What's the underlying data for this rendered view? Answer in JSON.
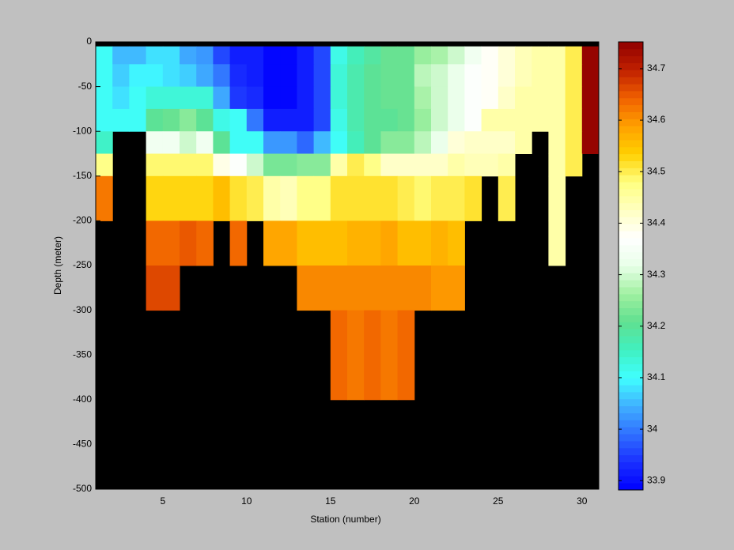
{
  "chart_data": {
    "type": "heatmap",
    "xlabel": "Station (number)",
    "ylabel": "Depth (meter)",
    "xlim": [
      1,
      31
    ],
    "xticks": [
      5,
      10,
      15,
      20,
      25,
      30
    ],
    "ylim": [
      -500,
      0
    ],
    "yticks": [
      -500,
      -450,
      -400,
      -350,
      -300,
      -250,
      -200,
      -150,
      -100,
      -50,
      0
    ],
    "x_edges": [
      1,
      2,
      3,
      4,
      5,
      6,
      7,
      8,
      9,
      10,
      11,
      12,
      13,
      14,
      15,
      16,
      17,
      18,
      19,
      20,
      21,
      22,
      23,
      24,
      25,
      26,
      27,
      28,
      29,
      30,
      31
    ],
    "y_edges": [
      -5,
      -25,
      -50,
      -75,
      -100,
      -125,
      -150,
      -200,
      -250,
      -300,
      -400,
      -500
    ],
    "z": [
      [
        34.1,
        34.05,
        34.05,
        34.08,
        34.08,
        34.04,
        34.02,
        33.96,
        33.92,
        33.91,
        33.89,
        33.89,
        33.92,
        33.96,
        34.12,
        34.16,
        34.19,
        34.22,
        34.22,
        34.26,
        34.27,
        34.3,
        34.34,
        34.38,
        34.4,
        34.43,
        34.44,
        34.44,
        34.5,
        34.75
      ],
      [
        34.1,
        34.06,
        34.09,
        34.09,
        34.08,
        34.06,
        34.04,
        34.0,
        33.93,
        33.91,
        33.89,
        33.89,
        33.92,
        33.96,
        34.14,
        34.17,
        34.2,
        34.22,
        34.22,
        34.28,
        34.29,
        34.32,
        34.36,
        34.38,
        34.4,
        34.43,
        34.44,
        34.44,
        34.5,
        34.75
      ],
      [
        34.1,
        34.08,
        34.1,
        34.14,
        34.14,
        34.13,
        34.13,
        34.04,
        33.94,
        33.93,
        33.89,
        33.89,
        33.92,
        33.96,
        34.14,
        34.17,
        34.2,
        34.22,
        34.22,
        34.27,
        34.29,
        34.32,
        34.36,
        34.38,
        34.42,
        34.44,
        34.44,
        34.44,
        34.5,
        34.75
      ],
      [
        34.1,
        34.1,
        34.1,
        34.2,
        34.21,
        34.24,
        34.2,
        34.12,
        34.1,
        34.0,
        33.91,
        33.91,
        33.91,
        33.95,
        34.12,
        34.17,
        34.2,
        34.2,
        34.22,
        34.25,
        34.3,
        34.32,
        34.37,
        34.44,
        34.44,
        34.45,
        34.45,
        34.44,
        34.5,
        34.75
      ],
      [
        34.15,
        null,
        null,
        34.34,
        34.34,
        34.3,
        34.34,
        34.2,
        34.1,
        34.1,
        34.03,
        34.03,
        33.99,
        34.05,
        34.1,
        34.16,
        34.2,
        34.24,
        34.24,
        34.28,
        34.32,
        34.4,
        34.42,
        34.42,
        34.42,
        34.45,
        null,
        34.44,
        34.5,
        34.75
      ],
      [
        34.48,
        null,
        null,
        34.49,
        34.49,
        34.49,
        34.49,
        34.39,
        34.37,
        34.3,
        34.23,
        34.23,
        34.24,
        34.24,
        34.44,
        34.5,
        34.47,
        34.42,
        34.42,
        34.42,
        34.42,
        34.44,
        34.43,
        34.43,
        34.44,
        null,
        null,
        34.45,
        34.5,
        null
      ],
      [
        34.62,
        null,
        null,
        34.53,
        34.53,
        34.53,
        34.53,
        34.56,
        34.51,
        34.5,
        34.45,
        34.43,
        34.48,
        34.48,
        34.52,
        34.52,
        34.52,
        34.52,
        34.5,
        34.49,
        34.5,
        34.5,
        34.52,
        null,
        34.5,
        null,
        null,
        34.45,
        null,
        null
      ],
      [
        null,
        null,
        null,
        34.63,
        34.63,
        34.65,
        34.63,
        null,
        34.63,
        null,
        34.58,
        34.58,
        34.55,
        34.55,
        34.56,
        34.57,
        34.57,
        34.58,
        34.56,
        34.56,
        34.57,
        34.56,
        null,
        null,
        null,
        null,
        null,
        34.45,
        null,
        null
      ],
      [
        null,
        null,
        null,
        34.66,
        34.66,
        null,
        null,
        null,
        null,
        null,
        null,
        null,
        34.61,
        34.61,
        34.61,
        34.61,
        34.61,
        34.61,
        34.61,
        34.61,
        34.6,
        34.6,
        null,
        null,
        null,
        null,
        null,
        null,
        null,
        null
      ],
      [
        null,
        null,
        null,
        null,
        null,
        null,
        null,
        null,
        null,
        null,
        null,
        null,
        null,
        null,
        34.63,
        34.62,
        34.63,
        34.62,
        34.63,
        null,
        null,
        null,
        null,
        null,
        null,
        null,
        null,
        null,
        null,
        null
      ],
      [
        null,
        null,
        null,
        null,
        null,
        null,
        null,
        null,
        null,
        null,
        null,
        null,
        null,
        null,
        null,
        null,
        null,
        null,
        null,
        null,
        null,
        null,
        null,
        null,
        null,
        null,
        null,
        null,
        null,
        null
      ]
    ],
    "clim": [
      33.882,
      34.752
    ],
    "cticks": [
      33.9,
      34,
      34.1,
      34.2,
      34.3,
      34.4,
      34.5,
      34.6,
      34.7
    ],
    "colormap": [
      "#0000ff",
      "#1a30ff",
      "#3070ff",
      "#40b0ff",
      "#40ffff",
      "#40f0c0",
      "#60e090",
      "#a0f0a0",
      "#e8ffe8",
      "#ffffff",
      "#ffffc0",
      "#ffff80",
      "#ffd000",
      "#ffa000",
      "#f06000",
      "#c02000",
      "#900000"
    ],
    "axes_background": "#000000"
  }
}
